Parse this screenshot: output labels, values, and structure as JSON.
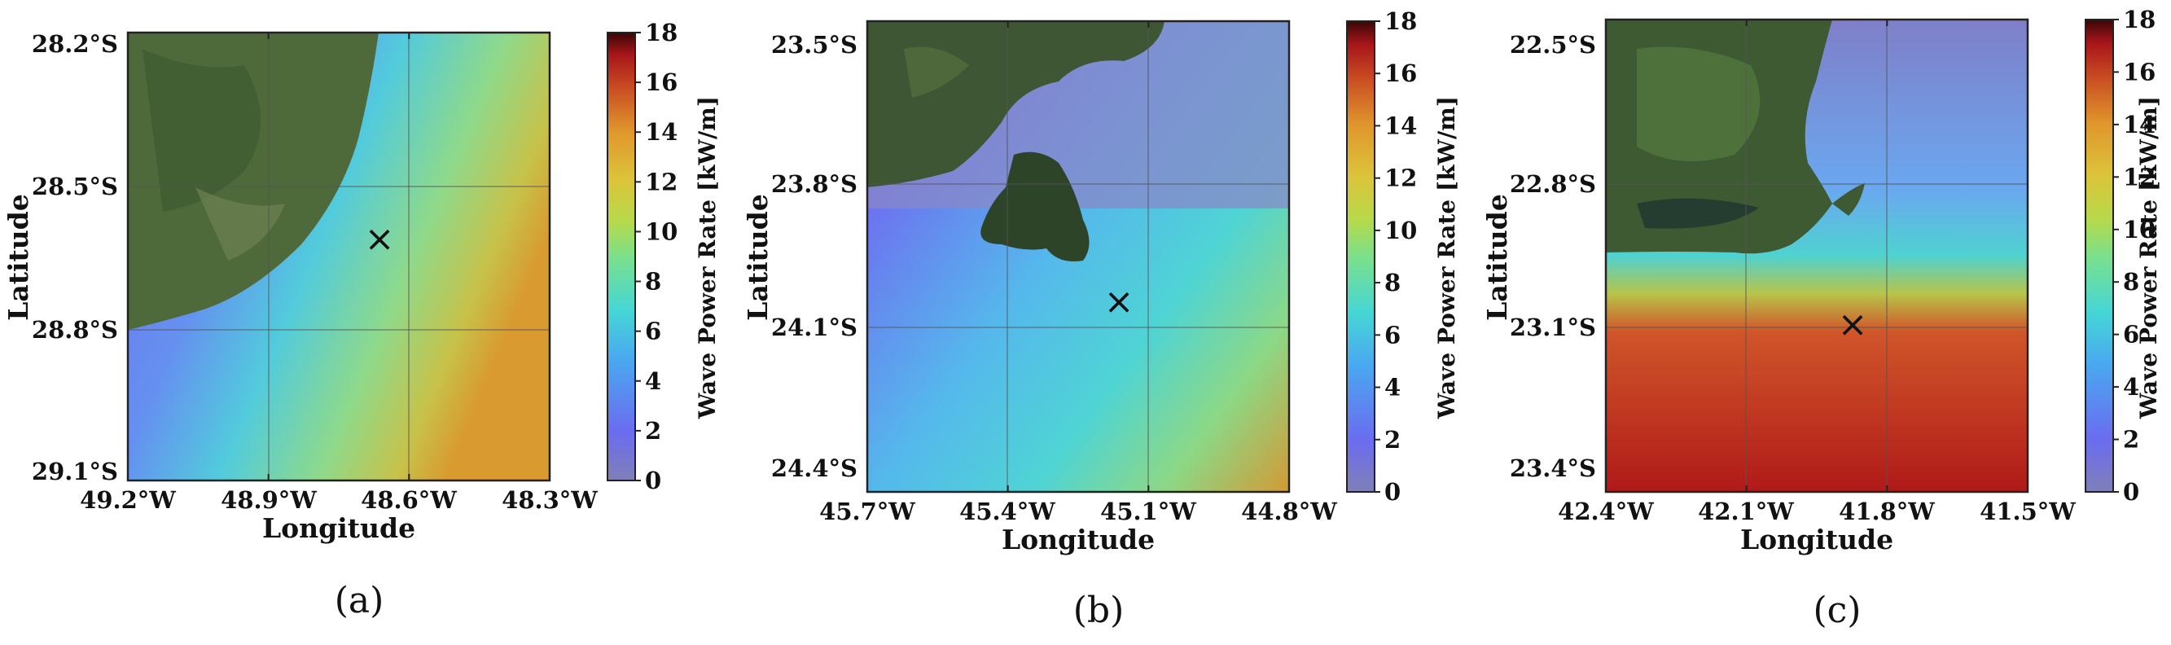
{
  "colorbar": {
    "label": "Wave Power Rate [kW/m]",
    "min": 0,
    "max": 18,
    "ticks": [
      "0",
      "2",
      "4",
      "6",
      "8",
      "10",
      "12",
      "14",
      "16",
      "18"
    ],
    "colors": [
      "#7f7fb8",
      "#6b6cf0",
      "#4aa8f0",
      "#46d6d6",
      "#7be08a",
      "#b8d94a",
      "#dcc43a",
      "#e0962c",
      "#c84a22",
      "#a8161a",
      "#3a0606"
    ]
  },
  "panels": [
    {
      "caption": "(a)",
      "xlabel": "Longitude",
      "ylabel": "Latitude",
      "x_ticks": [
        "49.2°W",
        "48.9°W",
        "48.6°W",
        "48.3°W"
      ],
      "y_ticks": [
        "28.2°S",
        "28.5°S",
        "28.8°S",
        "29.1°S"
      ],
      "marker": {
        "symbol": "×",
        "lon": "48.67°W",
        "lat": "28.64°S"
      }
    },
    {
      "caption": "(b)",
      "xlabel": "Longitude",
      "ylabel": "Latitude",
      "x_ticks": [
        "45.7°W",
        "45.4°W",
        "45.1°W",
        "44.8°W"
      ],
      "y_ticks": [
        "23.5°S",
        "23.8°S",
        "24.1°S",
        "24.4°S"
      ],
      "marker": {
        "symbol": "×",
        "lon": "45.15°W",
        "lat": "24.03°S"
      }
    },
    {
      "caption": "(c)",
      "xlabel": "Longitude",
      "ylabel": "Latitude",
      "x_ticks": [
        "42.4°W",
        "42.1°W",
        "41.8°W",
        "41.5°W"
      ],
      "y_ticks": [
        "22.5°S",
        "22.8°S",
        "23.1°S",
        "23.4°S"
      ],
      "marker": {
        "symbol": "×",
        "lon": "41.85°W",
        "lat": "23.09°S"
      }
    }
  ]
}
